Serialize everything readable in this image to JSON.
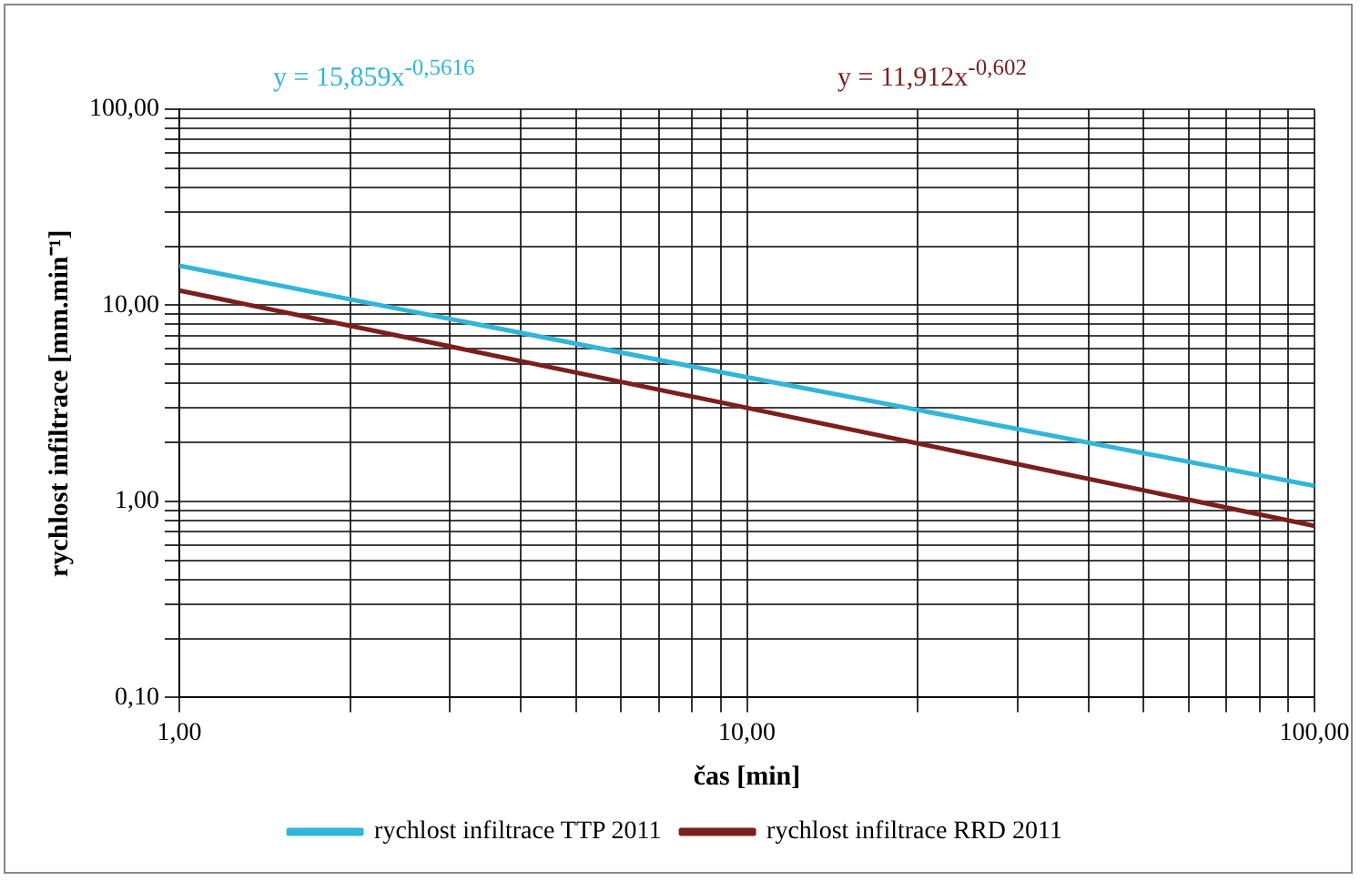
{
  "chart_data": {
    "type": "line",
    "xlabel": "čas [min]",
    "ylabel": "rychlost infiltrace [mm.min⁻¹]",
    "annotations": [
      "y = 15,859x$^{-0,5616}$",
      "y = 11,912x$^{-0,602}$"
    ],
    "log": "xy",
    "grid": true,
    "legend": "bottom",
    "marker": "none",
    "line_style": "solid",
    "xlim": [
      1,
      100
    ],
    "ylim": [
      0.1,
      100
    ],
    "xticks": [
      {
        "value": 1,
        "label": "1,00"
      },
      {
        "value": 2,
        "label": null
      },
      {
        "value": 3,
        "label": null
      },
      {
        "value": 4,
        "label": null
      },
      {
        "value": 5,
        "label": null
      },
      {
        "value": 6,
        "label": null
      },
      {
        "value": 7,
        "label": null
      },
      {
        "value": 8,
        "label": null
      },
      {
        "value": 9,
        "label": null
      },
      {
        "value": 10,
        "label": "10,00"
      },
      {
        "value": 20,
        "label": null
      },
      {
        "value": 30,
        "label": null
      },
      {
        "value": 40,
        "label": null
      },
      {
        "value": 50,
        "label": null
      },
      {
        "value": 60,
        "label": null
      },
      {
        "value": 70,
        "label": null
      },
      {
        "value": 80,
        "label": null
      },
      {
        "value": 90,
        "label": null
      },
      {
        "value": 100,
        "label": "100,00"
      }
    ],
    "yticks": [
      {
        "value": 0.1,
        "label": "0,10"
      },
      {
        "value": 0.2,
        "label": null
      },
      {
        "value": 0.3,
        "label": null
      },
      {
        "value": 0.4,
        "label": null
      },
      {
        "value": 0.5,
        "label": null
      },
      {
        "value": 0.6,
        "label": null
      },
      {
        "value": 0.7,
        "label": null
      },
      {
        "value": 0.8,
        "label": null
      },
      {
        "value": 0.9,
        "label": null
      },
      {
        "value": 1,
        "label": "1,00"
      },
      {
        "value": 2,
        "label": null
      },
      {
        "value": 3,
        "label": null
      },
      {
        "value": 4,
        "label": null
      },
      {
        "value": 5,
        "label": null
      },
      {
        "value": 6,
        "label": null
      },
      {
        "value": 7,
        "label": null
      },
      {
        "value": 8,
        "label": null
      },
      {
        "value": 9,
        "label": null
      },
      {
        "value": 10,
        "label": "10,00"
      },
      {
        "value": 20,
        "label": null
      },
      {
        "value": 30,
        "label": null
      },
      {
        "value": 40,
        "label": null
      },
      {
        "value": 50,
        "label": null
      },
      {
        "value": 60,
        "label": null
      },
      {
        "value": 70,
        "label": null
      },
      {
        "value": 80,
        "label": null
      },
      {
        "value": 90,
        "label": null
      },
      {
        "value": 100,
        "label": "100,00"
      }
    ],
    "x": [
      1,
      10,
      100
    ],
    "series": [
      {
        "name": "rychlost infiltrace TTP 2011",
        "color": "#33b5d9",
        "values": [
          15.9,
          4.3,
          1.2
        ]
      },
      {
        "name": "rychlost infiltrace RRD 2011",
        "color": "#7a1f1f",
        "values": [
          11.9,
          3.0,
          0.75
        ]
      }
    ]
  }
}
